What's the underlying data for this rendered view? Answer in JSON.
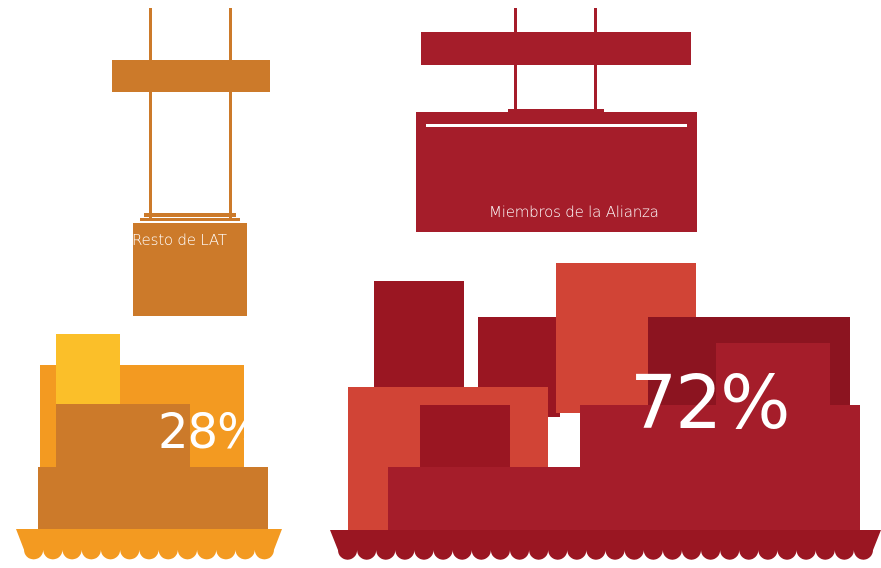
{
  "chart_data": {
    "type": "pictorial",
    "categories": [
      "Resto de LAT",
      "Miembros de la Alianza"
    ],
    "series": [
      {
        "values": [
          28,
          72
        ]
      }
    ],
    "labels": {
      "rest_name": "Resto de LAT",
      "rest_value": "28%",
      "alliance_name": "Miembros de la Alianza",
      "alliance_value": "72%"
    },
    "colors": {
      "rest": [
        "#cc7a2a",
        "#f39a21",
        "#fbbf29"
      ],
      "alliance": [
        "#a51d2a",
        "#d14436",
        "#8c1420",
        "#9a1622"
      ]
    }
  }
}
